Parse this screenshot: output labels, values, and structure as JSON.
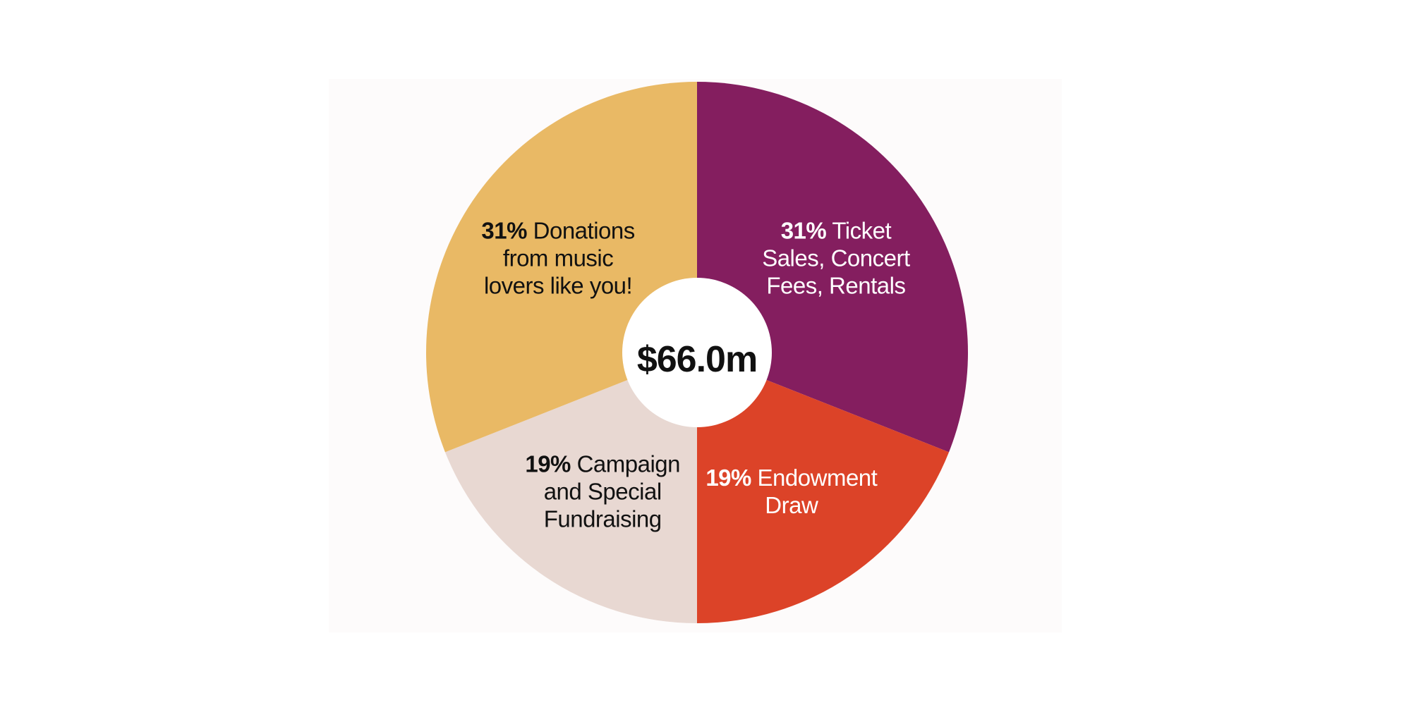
{
  "chart_data": {
    "type": "donut",
    "center_label": "$66.0m",
    "categories": [
      "Ticket Sales, Concert Fees, Rentals",
      "Endowment Draw",
      "Campaign and Special Fundraising",
      "Donations from music lovers like you!"
    ],
    "values": [
      31,
      19,
      19,
      31
    ],
    "value_labels": [
      "31%",
      "19%",
      "19%",
      "31%"
    ],
    "colors": [
      "#841e5f",
      "#dc4328",
      "#e8d8d2",
      "#e9b965"
    ]
  }
}
